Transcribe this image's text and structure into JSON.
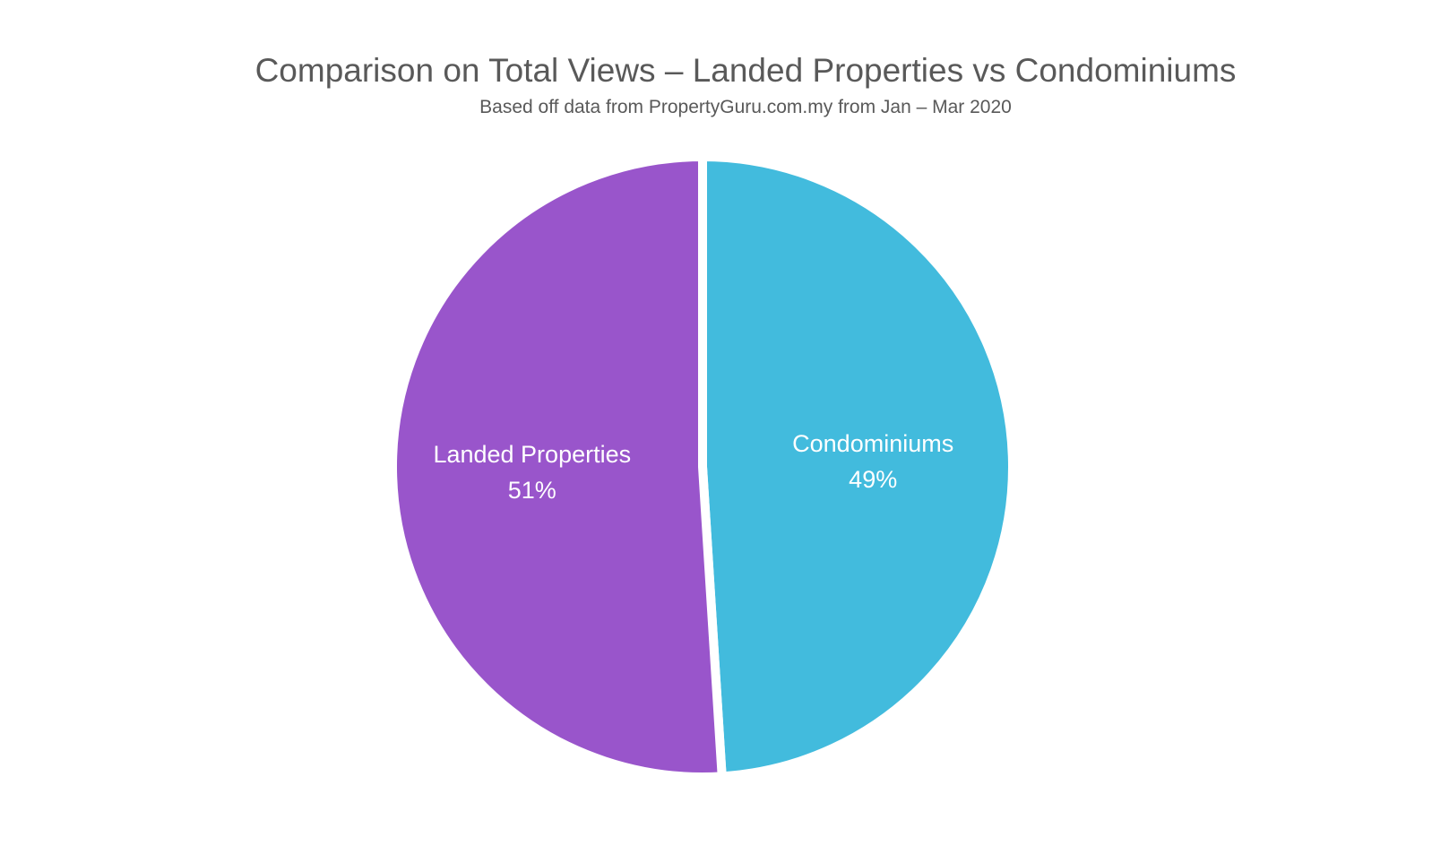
{
  "chart_data": {
    "type": "pie",
    "title": "Comparison on Total Views – Landed Properties vs Condominiums",
    "subtitle": "Based off data from PropertyGuru.com.my from Jan – Mar 2020",
    "slices": [
      {
        "label": "Condominiums",
        "value": 49,
        "value_label": "49%",
        "color": "#42bbdd"
      },
      {
        "label": "Landed Properties",
        "value": 51,
        "value_label": "51%",
        "color": "#9955cb"
      }
    ],
    "start_angle": "top, clockwise",
    "legend": "none",
    "data_labels": "inside slices"
  }
}
